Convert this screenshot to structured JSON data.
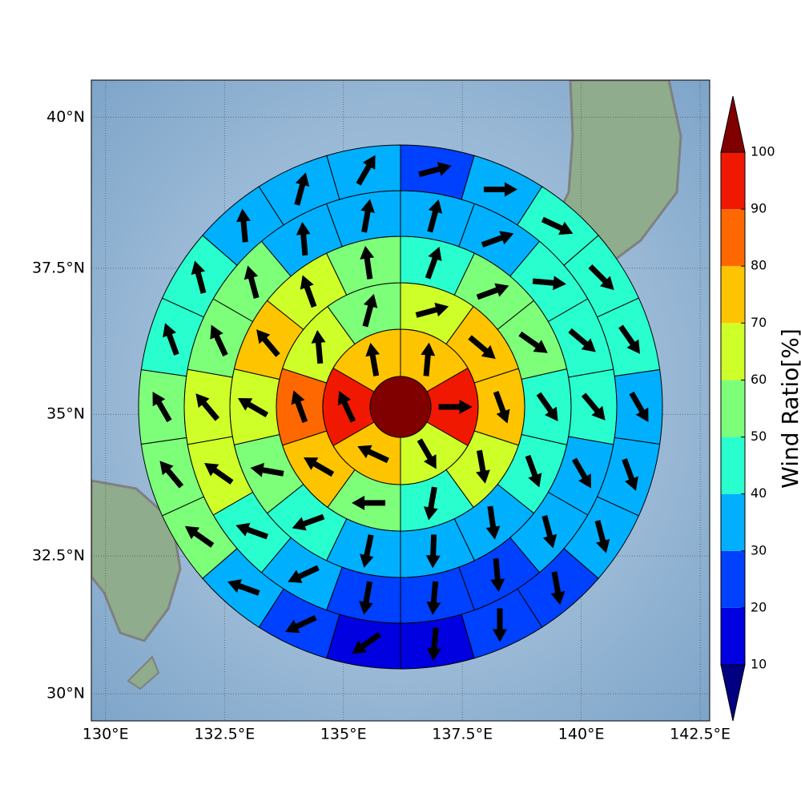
{
  "chart_data": {
    "type": "polar_heatmap",
    "xlim": [
      129.7,
      142.7
    ],
    "ylim": [
      29.5,
      40.6
    ],
    "xticks": [
      {
        "value": 130,
        "label": "130°E"
      },
      {
        "value": 132.5,
        "label": "132.5°E"
      },
      {
        "value": 135,
        "label": "135°E"
      },
      {
        "value": 137.5,
        "label": "137.5°E"
      },
      {
        "value": 140,
        "label": "140°E"
      },
      {
        "value": 142.5,
        "label": "142.5°E"
      }
    ],
    "yticks": [
      {
        "value": 30,
        "label": "30°N"
      },
      {
        "value": 32.5,
        "label": "32.5°N"
      },
      {
        "value": 35,
        "label": "35°N"
      },
      {
        "value": 37.5,
        "label": "37.5°N"
      },
      {
        "value": 40,
        "label": "40°N"
      }
    ],
    "y_scale": "mercator",
    "grid": true,
    "center_value": 105,
    "rings": [
      {
        "values": [
          72,
          95,
          65,
          75,
          95,
          75
        ],
        "directions": [
          5,
          90,
          150,
          295,
          335,
          350
        ]
      },
      {
        "values": [
          65,
          75,
          72,
          65,
          45,
          55,
          75,
          85,
          65,
          55
        ],
        "directions": [
          75,
          130,
          160,
          170,
          190,
          270,
          300,
          340,
          355,
          15
        ]
      },
      {
        "values": [
          42,
          55,
          52,
          48,
          45,
          38,
          35,
          32,
          45,
          55,
          62,
          72,
          65,
          58
        ],
        "directions": [
          20,
          70,
          125,
          145,
          160,
          172,
          182,
          192,
          250,
          280,
          300,
          320,
          340,
          352
        ]
      },
      {
        "values": [
          35,
          33,
          42,
          45,
          45,
          38,
          35,
          25,
          22,
          22,
          35,
          45,
          62,
          62,
          55,
          52,
          38,
          38
        ],
        "directions": [
          15,
          70,
          95,
          130,
          140,
          150,
          165,
          175,
          185,
          190,
          245,
          290,
          305,
          320,
          335,
          345,
          355,
          10
        ]
      },
      {
        "values": [
          25,
          35,
          45,
          45,
          42,
          35,
          35,
          35,
          25,
          22,
          15,
          15,
          25,
          35,
          55,
          55,
          52,
          45,
          45,
          35,
          35,
          35
        ],
        "directions": [
          75,
          90,
          115,
          135,
          145,
          150,
          160,
          165,
          170,
          180,
          185,
          235,
          245,
          290,
          305,
          320,
          330,
          340,
          345,
          355,
          15,
          30
        ]
      }
    ],
    "levels": [
      10,
      20,
      30,
      40,
      50,
      60,
      70,
      80,
      90,
      100
    ],
    "colors": [
      "#0000e0",
      "#0040ff",
      "#00b0ff",
      "#29ffce",
      "#7dff7a",
      "#ceff29",
      "#ffc400",
      "#ff6800",
      "#f01800"
    ],
    "under_color": "#000080",
    "over_color": "#800000",
    "colorbar_label": "Wind Ratio[%]"
  }
}
